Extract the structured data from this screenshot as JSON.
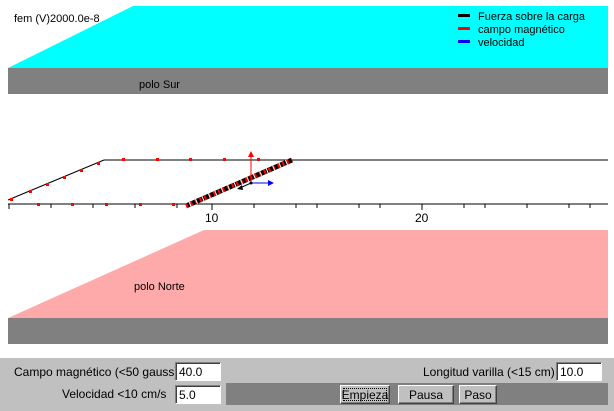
{
  "emf_readout": "fem (V)2000.0e-8",
  "legend": [
    {
      "label": "Fuerza sobre la carga",
      "color": "#000000"
    },
    {
      "label": "campo magnético",
      "color": "#ff0000"
    },
    {
      "label": "velocidad",
      "color": "#0000ff"
    }
  ],
  "poles": {
    "south_label": "polo Sur",
    "north_label": "polo Norte"
  },
  "colors": {
    "south_pole": "#00ffff",
    "north_pole": "#ffaaaa",
    "pole_base": "#808080",
    "panel": "#c0c0c0"
  },
  "scale": {
    "tick_labels": [
      "10",
      "20"
    ]
  },
  "controls": {
    "field_label": "Campo magnético (<50 gauss)",
    "field_value": "40.0",
    "velocity_label": "Velocidad <10 cm/s",
    "velocity_value": "5.0",
    "length_label": "Longitud varilla (<15 cm)",
    "length_value": "10.0",
    "start_label": "Empieza",
    "pause_label": "Pausa",
    "step_label": "Paso"
  }
}
